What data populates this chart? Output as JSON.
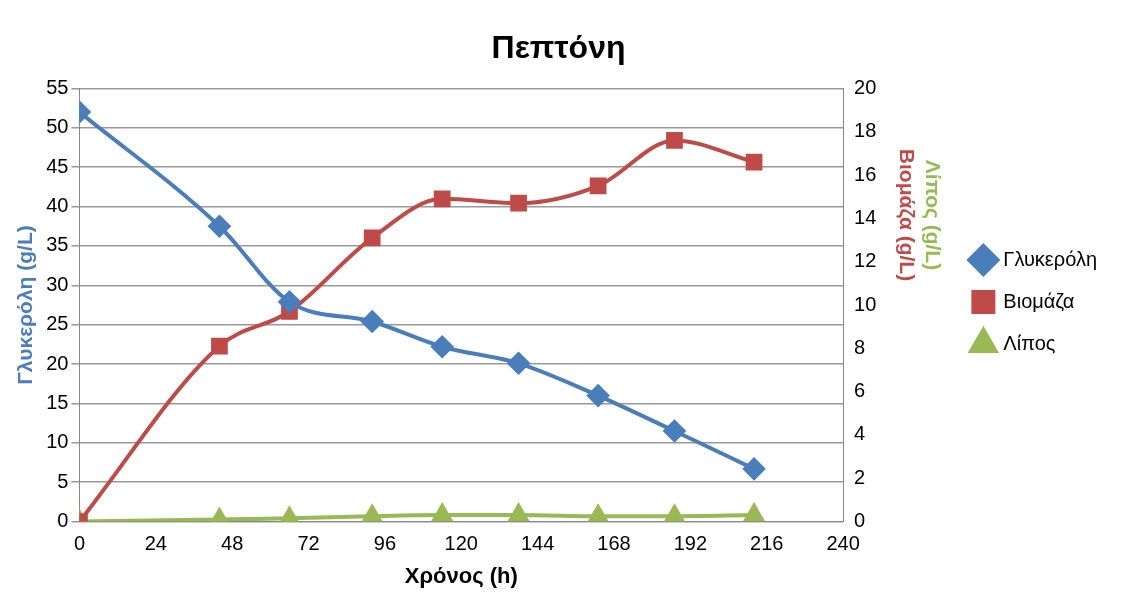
{
  "chart_data": {
    "type": "line",
    "title": "Πεπτόνη",
    "xlabel": "Χρόνος (h)",
    "ylabel": "Γλυκερόλη (g/L)",
    "y2label": [
      "Βιομάζα (g/L)",
      "Λίπος (g/L)"
    ],
    "x": [
      0,
      44,
      66,
      92,
      114,
      138,
      163,
      187,
      212
    ],
    "series": [
      {
        "name": "Γλυκερόλη",
        "color": "#4a7ebb",
        "marker": "diamond",
        "values": [
          52,
          37.5,
          27.9,
          25.4,
          22.2,
          20.1,
          16,
          11.5,
          6.7
        ]
      },
      {
        "name": "Βιομάζα",
        "color": "#be4b48",
        "marker": "square",
        "axis": "y2",
        "values": [
          0,
          8.1,
          9.7,
          13.1,
          14.9,
          14.7,
          15.5,
          17.6,
          16.6
        ]
      },
      {
        "name": "Λίπος",
        "color": "#98b954",
        "marker": "triangle",
        "axis": "y2",
        "values": [
          0,
          0.1,
          0.15,
          0.25,
          0.3,
          0.3,
          0.25,
          0.25,
          0.3
        ]
      }
    ],
    "xlim": [
      0,
      240
    ],
    "xticks": [
      0,
      24,
      48,
      72,
      96,
      120,
      144,
      168,
      192,
      216,
      240
    ],
    "ylim": [
      0,
      55
    ],
    "yticks": [
      0,
      5,
      10,
      15,
      20,
      25,
      30,
      35,
      40,
      45,
      50,
      55
    ],
    "y2lim": [
      0,
      20
    ],
    "y2ticks": [
      0,
      2,
      4,
      6,
      8,
      10,
      12,
      14,
      16,
      18,
      20
    ],
    "grid": "y",
    "legend": "right"
  }
}
